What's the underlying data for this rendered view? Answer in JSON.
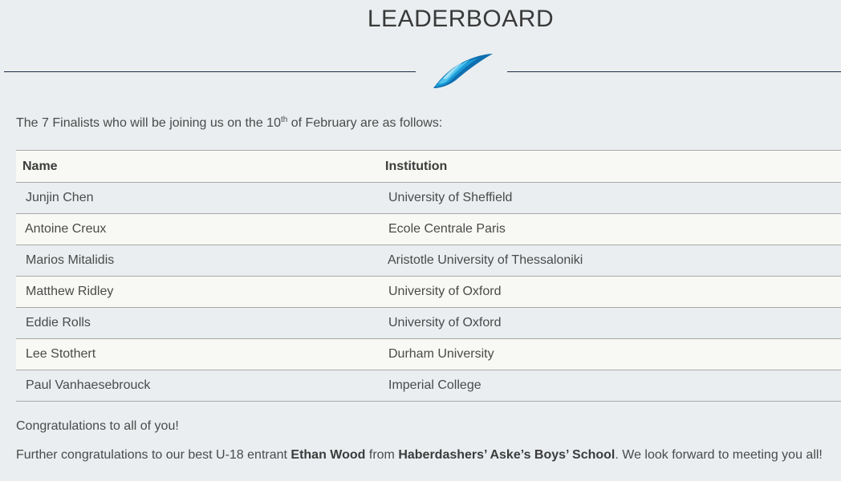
{
  "header": {
    "title": "LEADERBOARD",
    "logo_icon": "feather-logo-icon",
    "divider_color": "#1f2a44"
  },
  "intro": {
    "before": "The 7 Finalists who will be joining us on the 10",
    "sup": "th",
    "after": " of February are as follows:"
  },
  "table": {
    "headers": {
      "name": "Name",
      "institution": "Institution"
    },
    "rows": [
      {
        "name": "Junjin Chen",
        "institution": "University of Sheffield"
      },
      {
        "name": "Antoine Creux",
        "institution": "Ecole Centrale Paris"
      },
      {
        "name": "Marios Mitalidis",
        "institution": "Aristotle University of Thessaloniki"
      },
      {
        "name": "Matthew Ridley",
        "institution": "University of Oxford"
      },
      {
        "name": "Eddie Rolls",
        "institution": "University of Oxford"
      },
      {
        "name": "Lee Stothert",
        "institution": "Durham University"
      },
      {
        "name": "Paul Vanhaesebrouck",
        "institution": "Imperial College"
      }
    ]
  },
  "footer": {
    "congrats": "Congratulations to all of you!",
    "further_1": "Further congratulations to our best U-18 entrant ",
    "entrant": "Ethan Wood",
    "further_2": " from ",
    "school": "Haberdashers’ Aske’s Boys’ School",
    "further_3": ". We look forward to meeting you all!"
  },
  "colors": {
    "background": "#eaeef0",
    "row_alt": "#f8f8f4",
    "border": "#a9a9a9",
    "logo_blue": "#1a9ad6"
  }
}
